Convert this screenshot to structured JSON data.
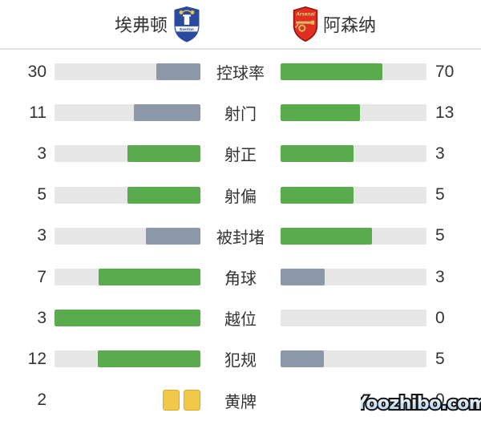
{
  "header": {
    "home_team": "埃弗顿",
    "away_team": "阿森纳",
    "home_badge_text": "Everton",
    "away_badge_text": "Arsenal"
  },
  "watermark": "Yoozhibo.com",
  "colors": {
    "bar_green": "#5aab4e",
    "bar_gray": "#8c97a8",
    "bar_track": "#e7e7e7",
    "yellow_card_fill": "#f2c84b",
    "yellow_card_border": "#dcab31",
    "everton_blue": "#2a4aa0",
    "arsenal_red": "#e22d22",
    "text": "#333333"
  },
  "icons": {
    "home_badge": "everton-crest-icon",
    "away_badge": "arsenal-crest-icon",
    "yellow_card": "yellow-card-icon"
  },
  "chart_data": {
    "type": "bar",
    "orientation": "horizontal-comparison",
    "categories": [
      "控球率",
      "射门",
      "射正",
      "射偏",
      "被封堵",
      "角球",
      "越位",
      "犯规",
      "黄牌"
    ],
    "series": [
      {
        "name": "埃弗顿",
        "side": "home",
        "values": [
          30,
          11,
          3,
          5,
          3,
          7,
          3,
          12,
          2
        ]
      },
      {
        "name": "阿森纳",
        "side": "away",
        "values": [
          70,
          13,
          3,
          5,
          5,
          3,
          0,
          5,
          0
        ]
      }
    ],
    "legend": "bar fill = value/(home+away); higher side green, lower side gray, ties both green; 黄牌 row rendered as yellow card icons"
  }
}
